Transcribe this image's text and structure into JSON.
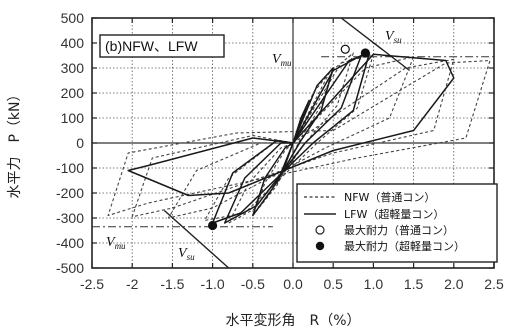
{
  "chart_data": {
    "type": "line",
    "panel_label": "(b)NFW、LFW",
    "xlabel": "水平変形角　R（%）",
    "ylabel": "水平力　P（kN）",
    "xlim": [
      -2.5,
      2.5
    ],
    "ylim": [
      -500,
      500
    ],
    "x_ticks": [
      "-2.5",
      "-2",
      "-1.5",
      "-1.0",
      "-0.5",
      "0.0",
      "0.5",
      "1.0",
      "1.5",
      "2.0",
      "2.5"
    ],
    "y_ticks": [
      "500",
      "400",
      "300",
      "200",
      "100",
      "0",
      "-100",
      "-200",
      "-300",
      "-400",
      "-500"
    ],
    "grid": true,
    "legend_position": "bottom-right",
    "legend": [
      {
        "label": "NFW（普通コン）",
        "style": "dashed"
      },
      {
        "label": "LFW（超軽量コン）",
        "style": "solid"
      },
      {
        "label": "最大耐力（普通コン）",
        "style": "open-circle"
      },
      {
        "label": "最大耐力（超軽量コン）",
        "style": "filled-circle"
      }
    ],
    "annotations": {
      "vmu_pos": {
        "main": "V",
        "sub": "mu"
      },
      "vsu_pos": {
        "main": "V",
        "sub": "su"
      },
      "vmu_neg": {
        "main": "V",
        "sub": "mu"
      },
      "vsu_neg": {
        "main": "V",
        "sub": "su"
      }
    },
    "reference_lines": {
      "vmu_pos": 345,
      "vmu_neg": -335,
      "vsu_pos": {
        "x": [
          0.6,
          1.45
        ],
        "y": [
          500,
          290
        ]
      },
      "vsu_neg": {
        "x": [
          -1.6,
          -0.8
        ],
        "y": [
          -270,
          -500
        ]
      }
    },
    "series": [
      {
        "name": "NFW（普通コン）",
        "style": "dashed",
        "loops": [
          {
            "x": [
              0,
              0.1,
              0.2,
              0.1,
              0,
              -0.1,
              -0.2,
              -0.1,
              0
            ],
            "y": [
              0,
              90,
              160,
              90,
              0,
              -90,
              -160,
              -90,
              0
            ]
          },
          {
            "x": [
              0,
              0.25,
              0.5,
              0.35,
              0.1,
              -0.2,
              -0.5,
              -0.35,
              -0.1,
              0
            ],
            "y": [
              0,
              200,
              300,
              150,
              20,
              -170,
              -290,
              -160,
              -30,
              0
            ]
          },
          {
            "x": [
              0,
              0.45,
              0.75,
              0.55,
              0.15,
              -0.4,
              -0.8,
              -0.55,
              -0.15,
              0
            ],
            "y": [
              0,
              280,
              360,
              150,
              0,
              -250,
              -320,
              -160,
              -20,
              0
            ]
          },
          {
            "x": [
              0,
              0.6,
              1.0,
              0.8,
              0.3,
              -0.6,
              -1.1,
              -0.8,
              -0.2,
              0
            ],
            "y": [
              0,
              320,
              355,
              140,
              0,
              -280,
              -310,
              -140,
              10,
              0
            ]
          },
          {
            "x": [
              0,
              0.9,
              1.5,
              1.2,
              0.4,
              -1.0,
              -1.55,
              -1.2,
              -0.4,
              0
            ],
            "y": [
              0,
              300,
              345,
              100,
              -20,
              -260,
              -300,
              -110,
              0,
              0
            ]
          },
          {
            "x": [
              0,
              1.4,
              2.0,
              1.75,
              0.5,
              -1.5,
              -2.0,
              -1.75,
              -0.5,
              0
            ],
            "y": [
              0,
              300,
              335,
              50,
              -40,
              -260,
              -295,
              -60,
              30,
              0
            ]
          },
          {
            "x": [
              0.5,
              1.9,
              2.45,
              2.15,
              0.8,
              -1.8,
              -2.3,
              -2.05,
              -0.7,
              0.5
            ],
            "y": [
              50,
              320,
              330,
              20,
              -60,
              -240,
              -290,
              -40,
              40,
              50
            ]
          }
        ],
        "peak_points": [
          {
            "x": 0.65,
            "y": 375
          }
        ]
      },
      {
        "name": "LFW（超軽量コン）",
        "style": "solid",
        "loops": [
          {
            "x": [
              0,
              0.1,
              0.2,
              0.1,
              0,
              -0.1,
              -0.2,
              -0.1,
              0
            ],
            "y": [
              0,
              100,
              170,
              90,
              0,
              -90,
              -160,
              -80,
              0
            ]
          },
          {
            "x": [
              0,
              0.3,
              0.5,
              0.35,
              0.1,
              -0.25,
              -0.5,
              -0.35,
              -0.1,
              0
            ],
            "y": [
              0,
              230,
              300,
              130,
              10,
              -180,
              -290,
              -140,
              -20,
              0
            ]
          },
          {
            "x": [
              0,
              0.5,
              0.85,
              0.6,
              0.15,
              -0.45,
              -0.85,
              -0.6,
              -0.15,
              0
            ],
            "y": [
              0,
              290,
              350,
              140,
              0,
              -250,
              -320,
              -140,
              0,
              0
            ]
          },
          {
            "x": [
              0,
              0.7,
              0.95,
              0.75,
              0.25,
              -0.65,
              -1.0,
              -0.75,
              -0.2,
              0
            ],
            "y": [
              0,
              330,
              360,
              130,
              0,
              -280,
              -320,
              -120,
              10,
              0
            ]
          },
          {
            "x": [
              0,
              1.0,
              1.9,
              2.0,
              1.5,
              0.5,
              -0.8,
              -1.3,
              -2.05,
              -1.8,
              -0.5,
              0
            ],
            "y": [
              0,
              355,
              330,
              260,
              50,
              -30,
              -200,
              -210,
              -110,
              -90,
              20,
              0
            ]
          }
        ],
        "peak_points": [
          {
            "x": 0.9,
            "y": 360
          },
          {
            "x": -1.0,
            "y": -330
          }
        ]
      }
    ]
  }
}
